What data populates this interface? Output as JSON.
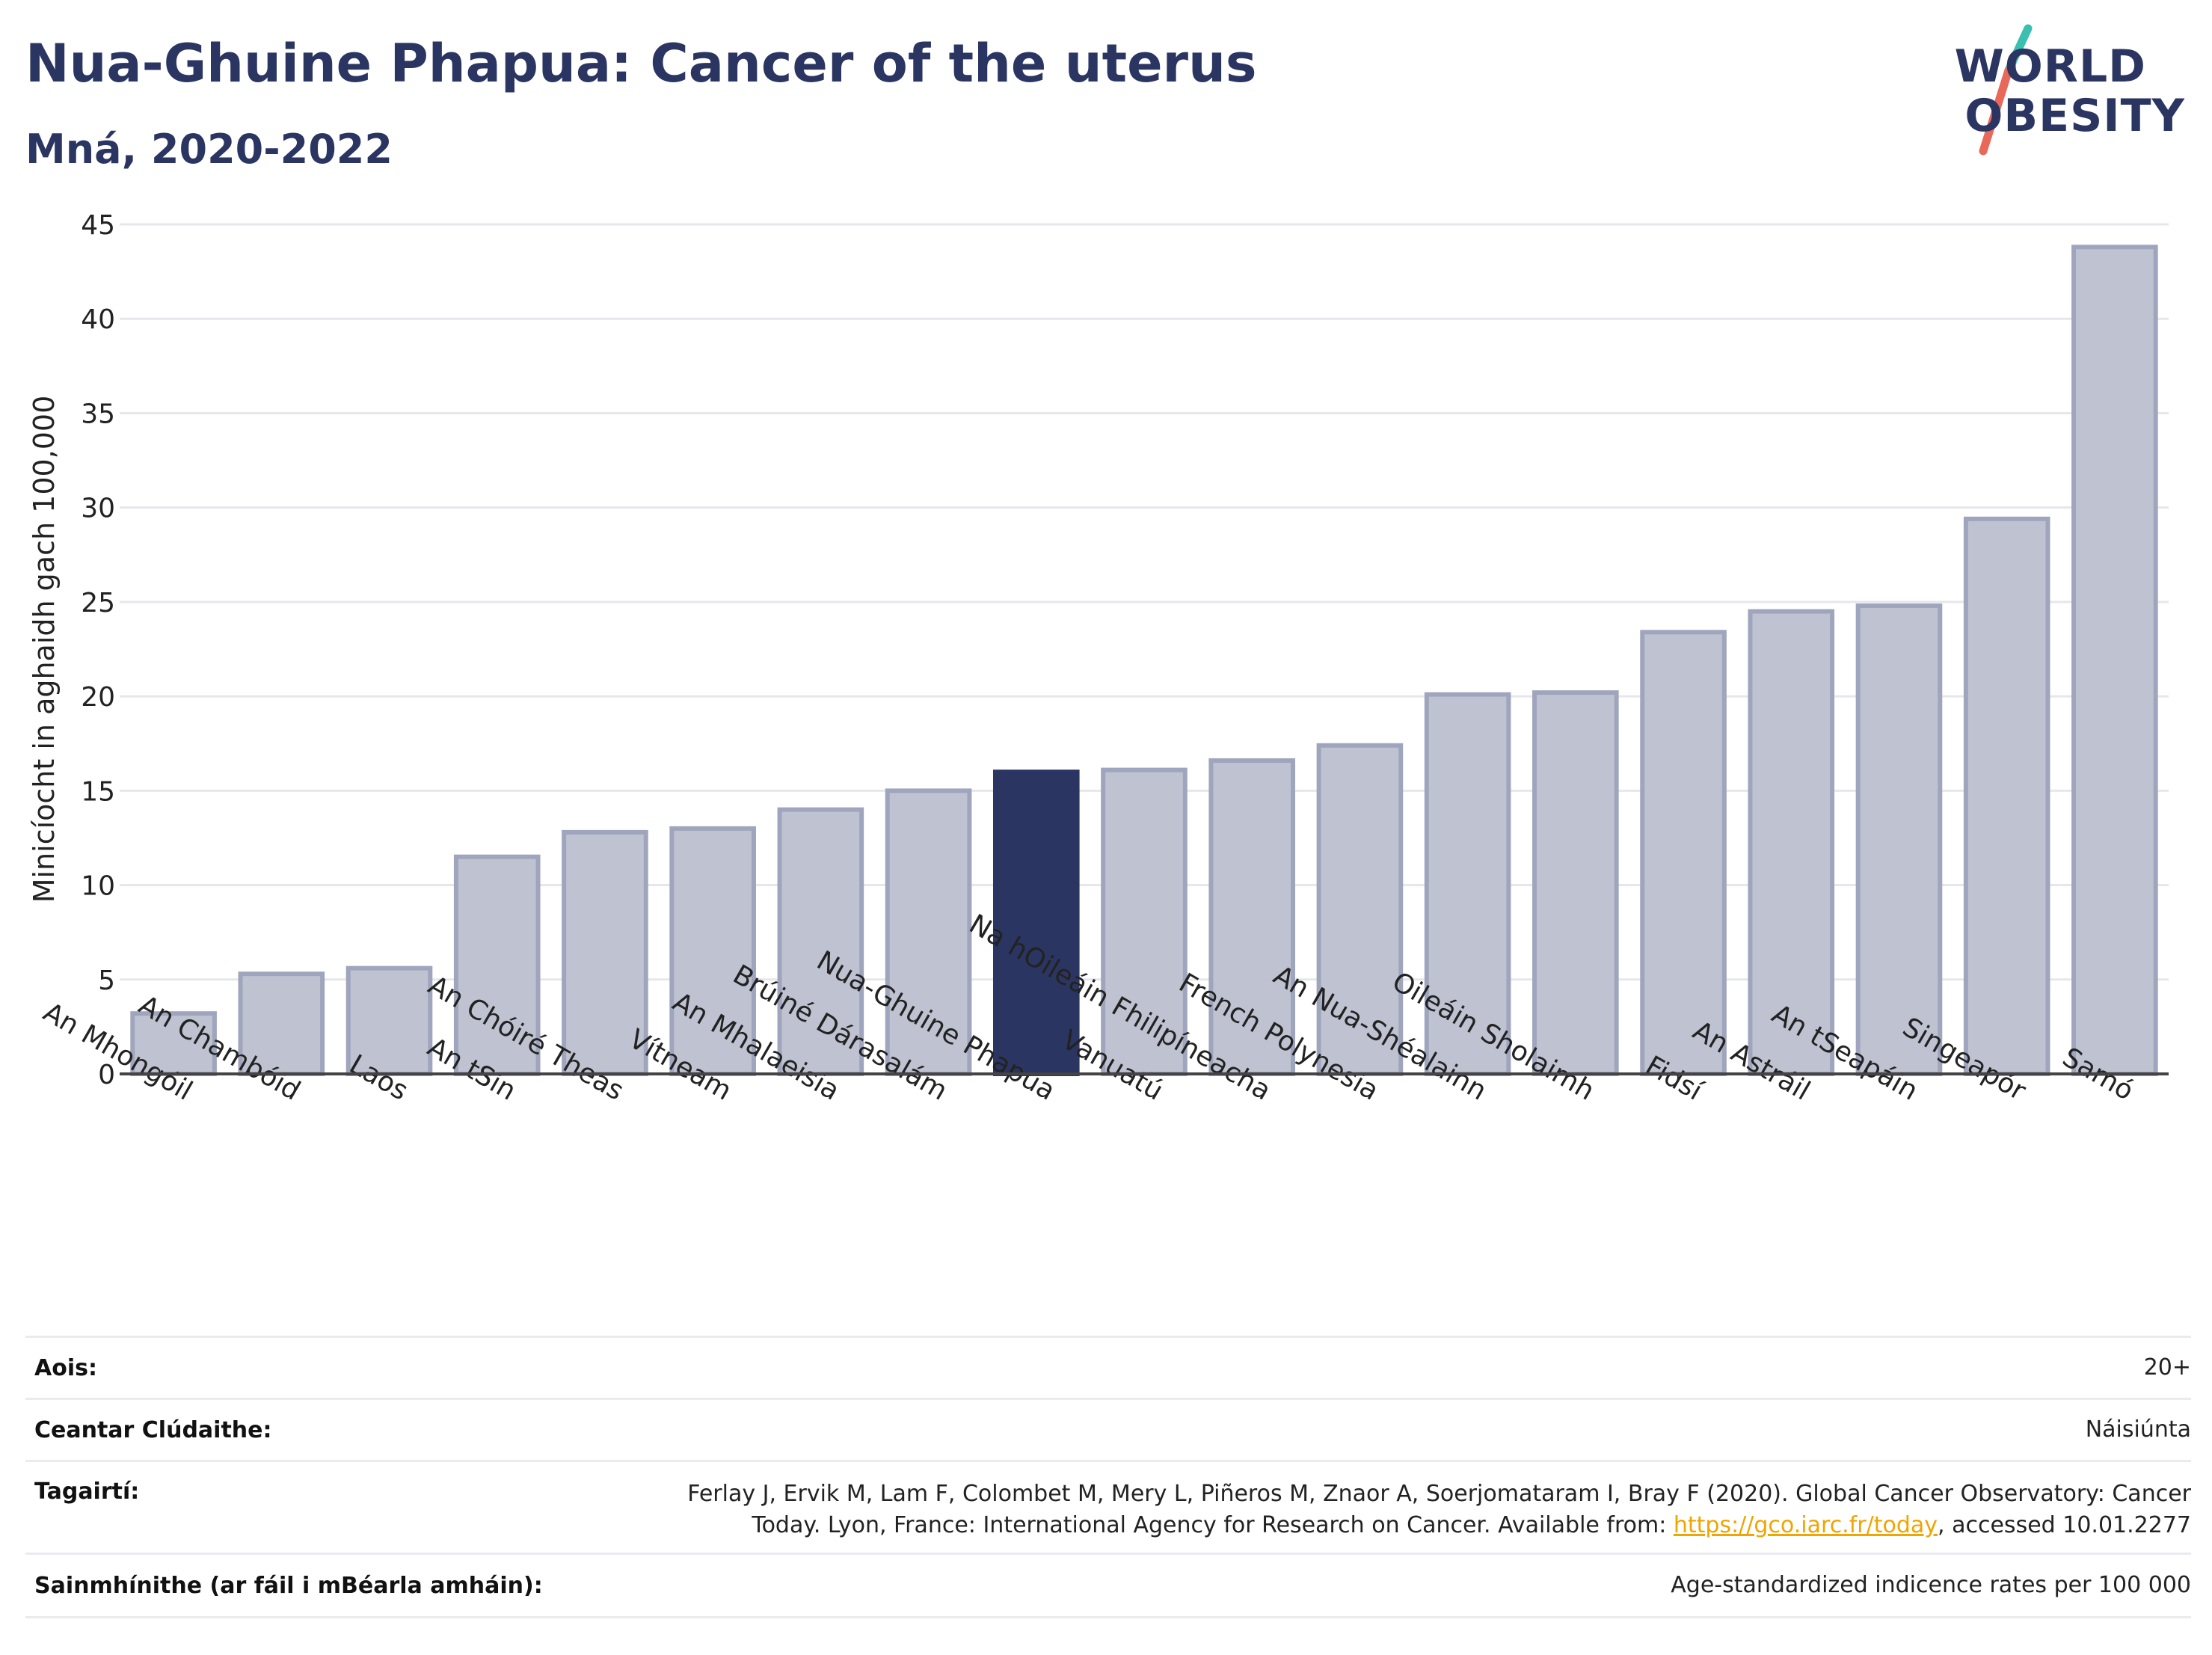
{
  "header": {
    "title": "Nua-Ghuine Phapua: Cancer of the uterus",
    "subtitle": "Mná, 2020-2022"
  },
  "logo": {
    "line1": "WORLD",
    "line2": "OBESITY",
    "slash_colors": [
      "#3bbfb0",
      "#e8685a"
    ]
  },
  "chart_data": {
    "type": "bar",
    "title": "",
    "xlabel": "",
    "ylabel": "Minicíocht in aghaidh gach 100,000",
    "ylim": [
      0,
      45
    ],
    "yticks": [
      0,
      5,
      10,
      15,
      20,
      25,
      30,
      35,
      40,
      45
    ],
    "grid": true,
    "categories": [
      "An Mhongóil",
      "An Chambóid",
      "Laos",
      "An tSín",
      "An Chóiré Theas",
      "Vítneam",
      "An Mhalaeisia",
      "Brúiné Dárasalám",
      "Nua-Ghuine Phapua",
      "Vanuatú",
      "Na hOileáin Fhilipíneacha",
      "French Polynesia",
      "An Nua-Shéalainn",
      "Oileáin Sholaimh",
      "Fidsí",
      "An Astráil",
      "An tSeapáin",
      "Singeapór",
      "Samó"
    ],
    "values": [
      3.2,
      5.3,
      5.6,
      11.5,
      12.8,
      13.0,
      14.0,
      15.0,
      16.0,
      16.1,
      16.6,
      17.4,
      20.1,
      20.2,
      23.4,
      24.5,
      24.8,
      29.4,
      43.8
    ],
    "highlight_index": 8,
    "colors": {
      "bar": "#bfc3d1",
      "bar_edge": "#9fa5bd",
      "highlight": "#2b3561"
    }
  },
  "info": {
    "rows": [
      {
        "label": "Aois:",
        "value": "20+"
      },
      {
        "label": "Ceantar Clúdaithe:",
        "value": "Náisiúnta"
      },
      {
        "label": "Tagairtí:",
        "value_line1": "Ferlay J, Ervik M, Lam F, Colombet M, Mery L, Piñeros M, Znaor A, Soerjomataram I, Bray F (2020). Global Cancer Observatory: Cancer",
        "value_line2_pre": "Today. Lyon, France: International Agency for Research on Cancer. Available from: ",
        "link": "https://gco.iarc.fr/today",
        "value_line2_post": ", accessed 10.01.2277"
      },
      {
        "label": "Sainmhínithe (ar fáil i mBéarla amháin):",
        "value": "Age-standardized indicence rates per 100 000"
      }
    ]
  }
}
